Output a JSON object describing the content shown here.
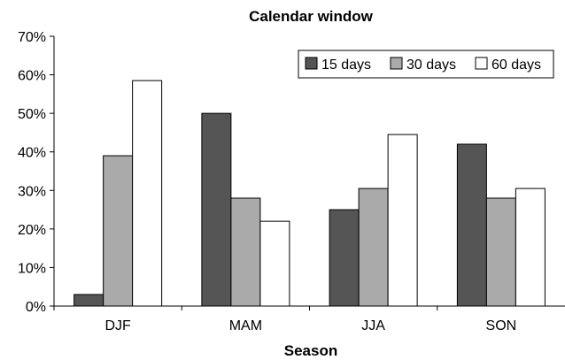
{
  "chart_data": {
    "type": "bar",
    "title": "Calendar window",
    "xlabel": "Season",
    "ylabel": "",
    "categories": [
      "DJF",
      "MAM",
      "JJA",
      "SON"
    ],
    "series": [
      {
        "name": "15 days",
        "color": "#555555",
        "values": [
          3,
          50,
          25,
          42
        ]
      },
      {
        "name": "30 days",
        "color": "#aaaaaa",
        "values": [
          39,
          28,
          30.5,
          28
        ]
      },
      {
        "name": "60 days",
        "color": "#ffffff",
        "values": [
          58.5,
          22,
          44.5,
          30.5
        ]
      }
    ],
    "ylim": [
      0,
      70
    ],
    "yticks": [
      0,
      10,
      20,
      30,
      40,
      50,
      60,
      70
    ],
    "ytick_labels": [
      "0%",
      "10%",
      "20%",
      "30%",
      "40%",
      "50%",
      "60%",
      "70%"
    ],
    "grid": false,
    "legend_position": "top-right"
  }
}
